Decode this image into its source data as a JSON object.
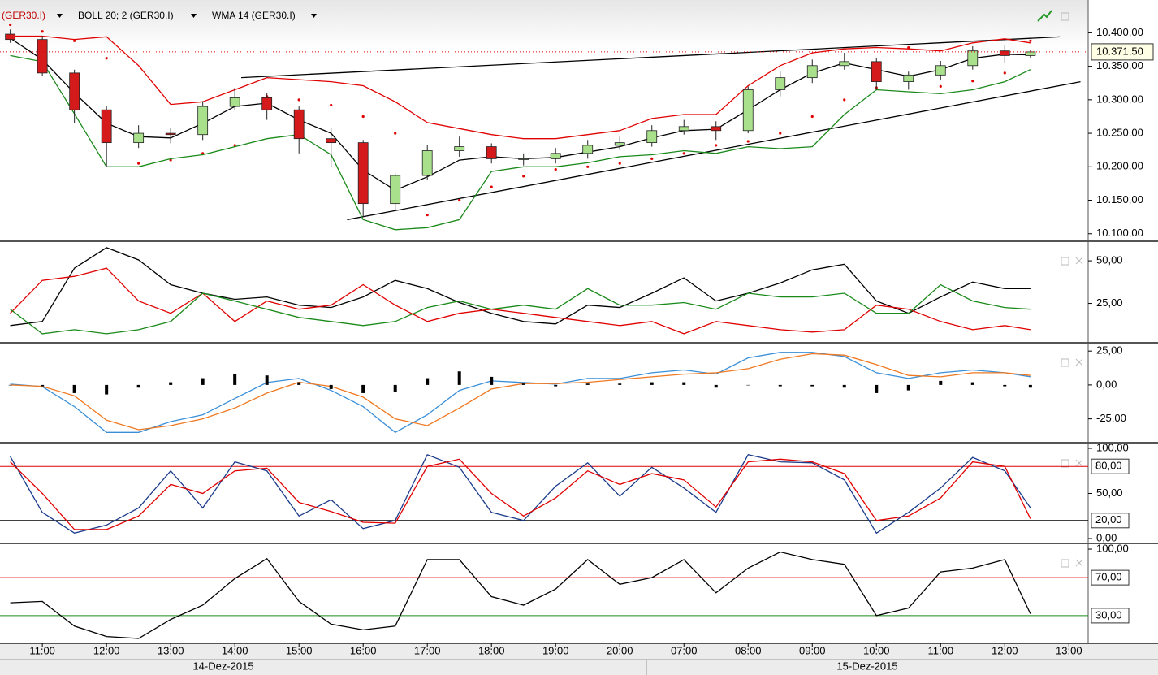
{
  "chart_data": [
    {
      "type": "candlestick",
      "x": [
        -0.5,
        0,
        0.5,
        1,
        1.5,
        2,
        2.5,
        3,
        3.5,
        4,
        4.5,
        5,
        5.5,
        6,
        6.5,
        7,
        7.5,
        8,
        8.5,
        9,
        9.5,
        10,
        10.5,
        11,
        11.5,
        12,
        12.5,
        13,
        13.5,
        14,
        14.5,
        15,
        15.4
      ],
      "xlim": [
        -0.66,
        16.3
      ],
      "xticks": [
        {
          "value": 0,
          "label": "11:00"
        },
        {
          "value": 1,
          "label": "12:00"
        },
        {
          "value": 2,
          "label": "13:00"
        },
        {
          "value": 3,
          "label": "14:00"
        },
        {
          "value": 4,
          "label": "15:00"
        },
        {
          "value": 5,
          "label": "16:00"
        },
        {
          "value": 6,
          "label": "17:00"
        },
        {
          "value": 7,
          "label": "18:00"
        },
        {
          "value": 8,
          "label": "19:00"
        },
        {
          "value": 9,
          "label": "20:00"
        },
        {
          "value": 10,
          "label": "07:00"
        },
        {
          "value": 11,
          "label": "08:00"
        },
        {
          "value": 12,
          "label": "09:00"
        },
        {
          "value": 13,
          "label": "10:00"
        },
        {
          "value": 14,
          "label": "11:00"
        },
        {
          "value": 15,
          "label": "12:00"
        },
        {
          "value": 16,
          "label": "13:00"
        }
      ],
      "dates": [
        "14-Dez-2015",
        "15-Dez-2015"
      ],
      "ylim": [
        10090,
        10449
      ],
      "yticks": [
        {
          "value": 10100,
          "label": "10.100,00"
        },
        {
          "value": 10150,
          "label": "10.150,00"
        },
        {
          "value": 10200,
          "label": "10.200,00"
        },
        {
          "value": 10250,
          "label": "10.250,00"
        },
        {
          "value": 10300,
          "label": "10.300,00"
        },
        {
          "value": 10350,
          "label": "10.350,00"
        },
        {
          "value": 10400,
          "label": "10.400,00"
        }
      ],
      "candles": {
        "up_color": "#a8e08c",
        "down_color": "#d41a1a",
        "open": [
          10398,
          10390,
          10340,
          10285,
          10236,
          10250,
          10248,
          10290,
          10303,
          10285,
          10242,
          10236,
          10145,
          10187,
          10224,
          10230,
          10212,
          10212,
          10220,
          10232,
          10236,
          10254,
          10260,
          10254,
          10315,
          10333,
          10351,
          10357,
          10327,
          10337,
          10351,
          10373,
          10366
        ],
        "high": [
          10405,
          10395,
          10345,
          10290,
          10262,
          10258,
          10298,
          10318,
          10310,
          10290,
          10258,
          10240,
          10190,
          10232,
          10245,
          10235,
          10220,
          10228,
          10240,
          10245,
          10262,
          10270,
          10268,
          10320,
          10342,
          10360,
          10370,
          10362,
          10342,
          10358,
          10380,
          10382,
          10375
        ],
        "low": [
          10385,
          10335,
          10265,
          10200,
          10228,
          10235,
          10240,
          10285,
          10270,
          10220,
          10200,
          10125,
          10135,
          10180,
          10215,
          10205,
          10202,
          10205,
          10212,
          10225,
          10230,
          10248,
          10240,
          10250,
          10305,
          10325,
          10345,
          10315,
          10315,
          10330,
          10345,
          10355,
          10362
        ],
        "close": [
          10390,
          10340,
          10285,
          10236,
          10250,
          10248,
          10290,
          10303,
          10285,
          10242,
          10236,
          10145,
          10187,
          10224,
          10230,
          10212,
          10212,
          10220,
          10232,
          10236,
          10254,
          10260,
          10254,
          10315,
          10333,
          10351,
          10357,
          10327,
          10337,
          10351,
          10373,
          10366,
          10371.5
        ]
      },
      "overlays": [
        {
          "name": "(GER30.I)",
          "style": "dots",
          "color": "#e00000",
          "values": [
            10412,
            10402,
            10388,
            10362,
            10205,
            10210,
            10220,
            10232,
            10305,
            10300,
            10292,
            10275,
            10250,
            10128,
            10150,
            10170,
            10186,
            10196,
            10200,
            10205,
            10212,
            10220,
            10232,
            10238,
            10250,
            10275,
            10300,
            10318,
            10378,
            10320,
            10328,
            10340,
            10388
          ]
        },
        {
          "name": "BOLL 20; 2 (GER30.I)",
          "style": "band",
          "upper": {
            "color": "#e00000",
            "values": [
              10395,
              10395,
              10390,
              10394,
              10351,
              10293,
              10297,
              10315,
              10333,
              10330,
              10327,
              10321,
              10297,
              10266,
              10257,
              10248,
              10242,
              10242,
              10248,
              10254,
              10272,
              10278,
              10278,
              10321,
              10351,
              10370,
              10376,
              10378,
              10376,
              10373,
              10385,
              10391,
              10385
            ]
          },
          "lower": {
            "color": "#1a8a1a",
            "values": [
              10366,
              10357,
              10279,
              10200,
              10200,
              10212,
              10218,
              10230,
              10242,
              10248,
              10218,
              10121,
              10106,
              10109,
              10121,
              10193,
              10200,
              10200,
              10206,
              10215,
              10218,
              10224,
              10220,
              10230,
              10227,
              10230,
              10278,
              10315,
              10312,
              10309,
              10315,
              10327,
              10345
            ]
          }
        },
        {
          "name": "WMA 14 (GER30.I)",
          "style": "line",
          "color": "#000000",
          "values": [
            10392,
            10360,
            10310,
            10265,
            10245,
            10243,
            10265,
            10290,
            10295,
            10270,
            10250,
            10195,
            10165,
            10185,
            10210,
            10215,
            10212,
            10214,
            10222,
            10230,
            10243,
            10254,
            10256,
            10285,
            10315,
            10340,
            10355,
            10345,
            10335,
            10345,
            10362,
            10368,
            10367
          ]
        }
      ],
      "trendlines": [
        {
          "x": [
            3.1,
            15.86
          ],
          "y": [
            10333,
            10394
          ]
        },
        {
          "x": [
            4.75,
            16.18
          ],
          "y": [
            10121,
            10327
          ]
        }
      ],
      "last_price": {
        "value": 10371.5,
        "label": "10.371,50",
        "color": "#e00000"
      }
    },
    {
      "type": "line",
      "ylim": [
        2.4,
        61
      ],
      "yticks": [
        {
          "value": 25,
          "label": "25,00"
        },
        {
          "value": 50,
          "label": "50,00"
        }
      ],
      "series": [
        {
          "color": "#000000",
          "values": [
            12,
            14.4,
            45.7,
            57.7,
            50.5,
            36,
            31,
            27.4,
            28.8,
            24,
            22.6,
            28.8,
            38.5,
            33.7,
            25.5,
            19.2,
            14.4,
            13,
            24,
            22.6,
            31,
            40,
            26.4,
            31,
            37,
            44.7,
            48,
            26.4,
            19.2,
            28.8,
            37.5,
            33.7,
            33.7
          ]
        },
        {
          "color": "#e00000",
          "values": [
            19.2,
            38.5,
            40.9,
            45.7,
            26.4,
            19.2,
            31,
            14.4,
            26.4,
            21.6,
            24,
            36,
            24,
            14.4,
            19.2,
            21.6,
            19.2,
            16.8,
            14.4,
            12,
            14.4,
            7.2,
            14.4,
            12,
            9.6,
            8.2,
            9.6,
            24,
            21.6,
            14.4,
            9.6,
            12,
            9.6
          ]
        },
        {
          "color": "#1a8a1a",
          "values": [
            21.6,
            7.2,
            9.6,
            7.2,
            9.6,
            14.4,
            31,
            26.4,
            21.6,
            16.8,
            14.4,
            12,
            14.4,
            22.6,
            26.4,
            21.6,
            24,
            21.6,
            33.7,
            24,
            24,
            25.5,
            21.6,
            31,
            28.8,
            28.8,
            31,
            19.2,
            19.2,
            36,
            26.4,
            22.6,
            21.6
          ]
        }
      ]
    },
    {
      "type": "line",
      "ylim": [
        -42,
        30.5
      ],
      "yticks": [
        {
          "value": -25,
          "label": "-25,00"
        },
        {
          "value": 0,
          "label": "0,00"
        },
        {
          "value": 25,
          "label": "25,00"
        }
      ],
      "series": [
        {
          "color": "#3a8fd8",
          "values": [
            0.6,
            -1.2,
            -16,
            -35,
            -35,
            -27,
            -22,
            -10,
            1.8,
            4.8,
            -4,
            -16,
            -35,
            -22,
            -4,
            3,
            1.8,
            0.6,
            4.8,
            4.8,
            9,
            11,
            8,
            20,
            24,
            24,
            21,
            9,
            4.8,
            9,
            11,
            9,
            6
          ]
        },
        {
          "color": "#f07820",
          "values": [
            0,
            -1,
            -8,
            -26,
            -33,
            -30,
            -25,
            -17,
            -6,
            2,
            -1,
            -9,
            -25,
            -30,
            -17,
            -3,
            1,
            1,
            2,
            4,
            6,
            8,
            9,
            12,
            19,
            23,
            22,
            15,
            7,
            6,
            9,
            9,
            7
          ]
        },
        {
          "color": "#000000",
          "style": "histogram",
          "values": [
            0,
            -1,
            -6,
            -7,
            -2,
            2,
            5,
            8,
            7,
            2,
            -3,
            -6,
            -5,
            5,
            10,
            6,
            1,
            -1,
            1,
            1,
            2,
            2,
            -2,
            0,
            -1,
            -1,
            -2,
            -6,
            -4,
            3,
            2,
            -1,
            -2
          ]
        }
      ]
    },
    {
      "type": "line",
      "ylim": [
        -4.5,
        104.5
      ],
      "yticks": [
        {
          "value": 0,
          "label": "0,00"
        },
        {
          "value": 50,
          "label": "50,00"
        },
        {
          "value": 100,
          "label": "100,00"
        }
      ],
      "levels": [
        {
          "value": 80,
          "label": "80,00",
          "color": "#e00000"
        },
        {
          "value": 20,
          "label": "20,00",
          "color": "#000000"
        }
      ],
      "series": [
        {
          "color": "#1a3a8a",
          "values": [
            91,
            29,
            6,
            15,
            34,
            75,
            34,
            85,
            75,
            25,
            43,
            11,
            20,
            93,
            79,
            29,
            20,
            58,
            84,
            47,
            79,
            56,
            29,
            93,
            85,
            84,
            65,
            6,
            29,
            56,
            90,
            75,
            34
          ]
        },
        {
          "color": "#e00000",
          "values": [
            85,
            50,
            10,
            10,
            25,
            60,
            50,
            75,
            78,
            40,
            30,
            18,
            17,
            80,
            88,
            50,
            25,
            45,
            75,
            60,
            72,
            65,
            35,
            85,
            88,
            85,
            72,
            20,
            25,
            45,
            85,
            80,
            22
          ]
        }
      ]
    },
    {
      "type": "line",
      "ylim": [
        1.7,
        104.3
      ],
      "yticks": [
        {
          "value": 100,
          "label": "100,00"
        }
      ],
      "levels": [
        {
          "value": 70,
          "label": "70,00",
          "color": "#e00000"
        },
        {
          "value": 30,
          "label": "30,00",
          "color": "#1a8a1a"
        }
      ],
      "series": [
        {
          "color": "#000000",
          "values": [
            43.5,
            45,
            19,
            8,
            6,
            26,
            41,
            69,
            90,
            45,
            21,
            15,
            19,
            89,
            89,
            50,
            41,
            58,
            89,
            63,
            70,
            89,
            54,
            80,
            97,
            89,
            84,
            30,
            38,
            76,
            80,
            89,
            32
          ]
        }
      ]
    }
  ]
}
